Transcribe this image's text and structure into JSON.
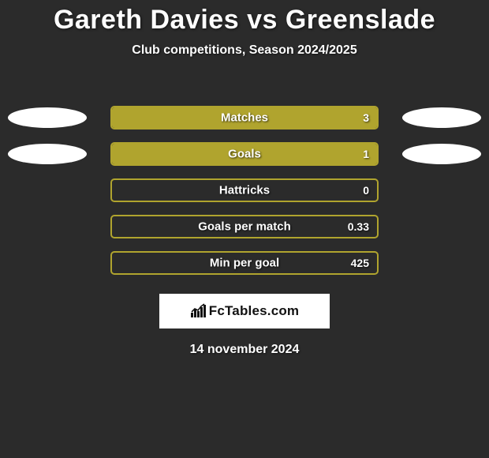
{
  "header": {
    "title": "Gareth Davies vs Greenslade",
    "subtitle": "Club competitions, Season 2024/2025"
  },
  "accent_color": "#b0a42e",
  "text_color": "#ffffff",
  "background_color": "#2b2b2b",
  "rows": [
    {
      "label": "Matches",
      "value": "3",
      "fill_pct": 100,
      "left_ellipse": true,
      "right_ellipse": true
    },
    {
      "label": "Goals",
      "value": "1",
      "fill_pct": 100,
      "left_ellipse": true,
      "right_ellipse": true
    },
    {
      "label": "Hattricks",
      "value": "0",
      "fill_pct": 0,
      "left_ellipse": false,
      "right_ellipse": false
    },
    {
      "label": "Goals per match",
      "value": "0.33",
      "fill_pct": 0,
      "left_ellipse": false,
      "right_ellipse": false
    },
    {
      "label": "Min per goal",
      "value": "425",
      "fill_pct": 0,
      "left_ellipse": false,
      "right_ellipse": false
    }
  ],
  "footer": {
    "brand": "FcTables.com",
    "date": "14 november 2024"
  }
}
